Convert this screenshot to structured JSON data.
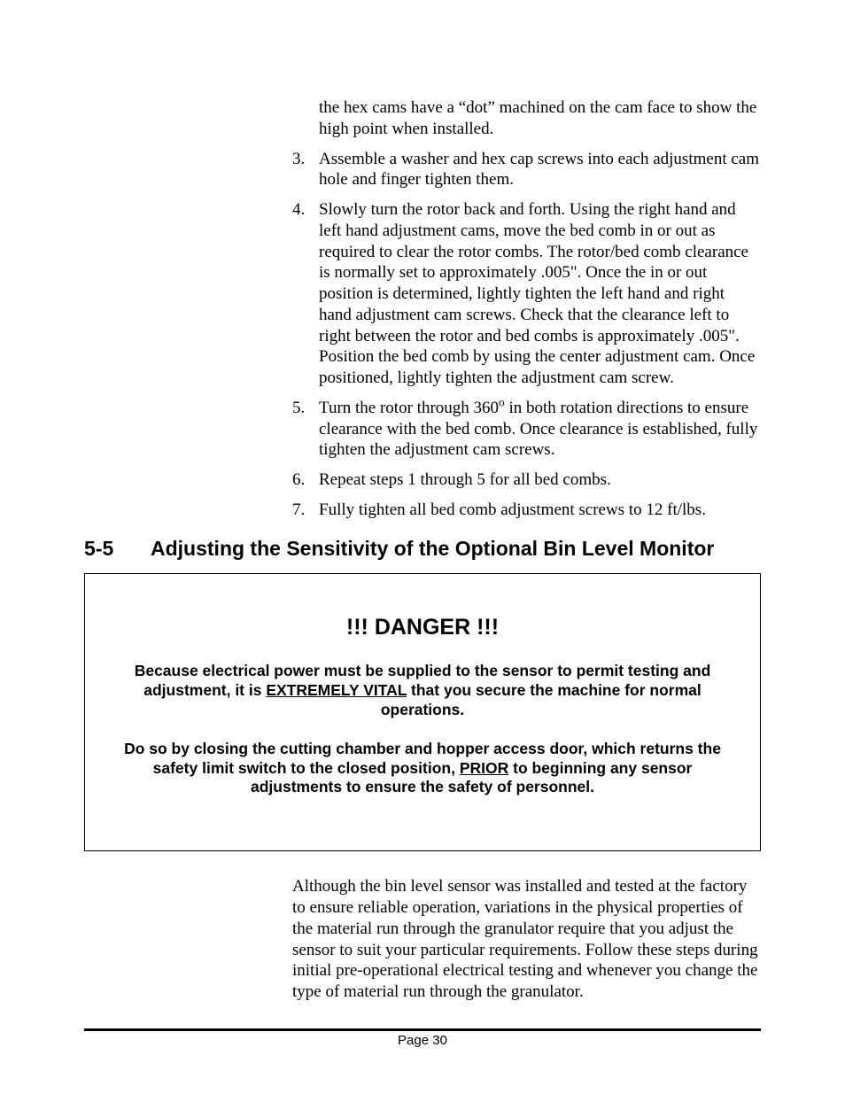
{
  "list": {
    "continuation_text": "the hex cams have a “dot” machined on the cam face to show the high point when installed.",
    "items": [
      {
        "num": "3.",
        "text": "Assemble a washer and hex cap screws into each adjustment cam hole and finger tighten them."
      },
      {
        "num": "4.",
        "text": "Slowly turn the rotor back and forth.  Using the right hand and left hand adjustment cams, move the bed comb in or out as required to clear the rotor combs.  The rotor/bed comb clearance is normally set to approximately .005\".  Once the in or out position is determined, lightly tighten the left hand and right hand adjustment cam screws.  Check that the clearance left to right between the rotor and bed combs is approximately .005\".  Position the bed comb by using the center adjustment cam.  Once positioned, lightly tighten the adjustment cam screw."
      },
      {
        "num": "5.",
        "text_pre": "Turn the rotor through 360",
        "text_post": " in both rotation directions to ensure clearance with the bed comb.  Once clearance is established, fully tighten the adjustment cam screws.",
        "sup": "o"
      },
      {
        "num": "6.",
        "text": "Repeat steps 1 through 5 for all bed combs."
      },
      {
        "num": "7.",
        "text": "Fully tighten all bed comb adjustment screws to 12 ft/lbs."
      }
    ]
  },
  "section": {
    "number": "5-5",
    "title": "Adjusting the Sensitivity of the Optional Bin Level Monitor"
  },
  "danger": {
    "title": "!!! DANGER !!!",
    "p1_a": "Because electrical power must be supplied to the sensor to permit testing and adjustment, it is ",
    "p1_u": "EXTREMELY VITAL",
    "p1_b": " that you secure the machine for normal operations.",
    "p2_a": "Do so by closing the cutting chamber and hopper access door, which returns the safety limit switch to the closed position, ",
    "p2_u": "PRIOR",
    "p2_b": " to beginning any sensor adjustments to ensure the safety of personnel."
  },
  "body_para": "Although the bin level sensor was installed and tested at the factory to ensure reliable operation, variations in the physical properties of the material run through the granulator require that you adjust the sensor to suit your particular requirements.  Follow these steps during initial pre-operational electrical testing and whenever you change the type of material run through the granulator.",
  "footer": "Page 30"
}
